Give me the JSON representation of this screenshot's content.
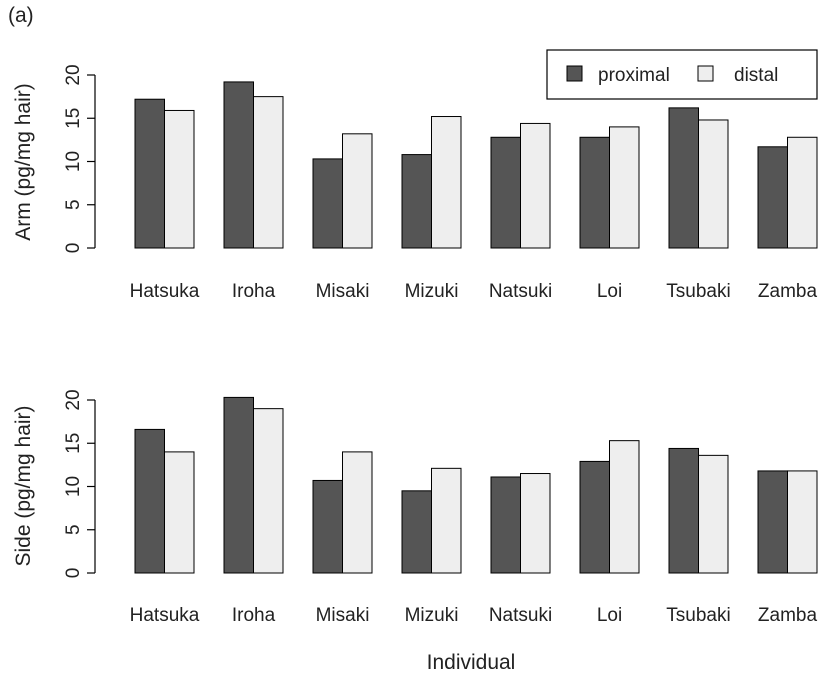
{
  "panel_label": "(a)",
  "x_axis_title": "Individual",
  "colors": {
    "proximal": "#555555",
    "distal": "#eeeeee",
    "stroke": "#000000"
  },
  "chart_data": [
    {
      "type": "bar",
      "categories": [
        "Hatsuka",
        "Iroha",
        "Misaki",
        "Mizuki",
        "Natsuki",
        "Loi",
        "Tsubaki",
        "Zamba"
      ],
      "series": [
        {
          "name": "proximal",
          "values": [
            17.2,
            19.2,
            10.3,
            10.8,
            12.8,
            12.8,
            16.2,
            11.7
          ]
        },
        {
          "name": "distal",
          "values": [
            15.9,
            17.5,
            13.2,
            15.2,
            14.4,
            14.0,
            14.8,
            12.8
          ]
        }
      ],
      "ylabel": "Arm (pg/mg hair)",
      "ylim": [
        0,
        20
      ],
      "yticks": [
        0,
        5,
        10,
        15,
        20
      ],
      "legend": "top-right"
    },
    {
      "type": "bar",
      "categories": [
        "Hatsuka",
        "Iroha",
        "Misaki",
        "Mizuki",
        "Natsuki",
        "Loi",
        "Tsubaki",
        "Zamba"
      ],
      "series": [
        {
          "name": "proximal",
          "values": [
            16.6,
            20.3,
            10.7,
            9.5,
            11.1,
            12.9,
            14.4,
            11.8
          ]
        },
        {
          "name": "distal",
          "values": [
            14.0,
            19.0,
            14.0,
            12.1,
            11.5,
            15.3,
            13.6,
            11.8
          ]
        }
      ],
      "ylabel": "Side (pg/mg hair)",
      "ylim": [
        0,
        20
      ],
      "yticks": [
        0,
        5,
        10,
        15,
        20
      ]
    }
  ]
}
